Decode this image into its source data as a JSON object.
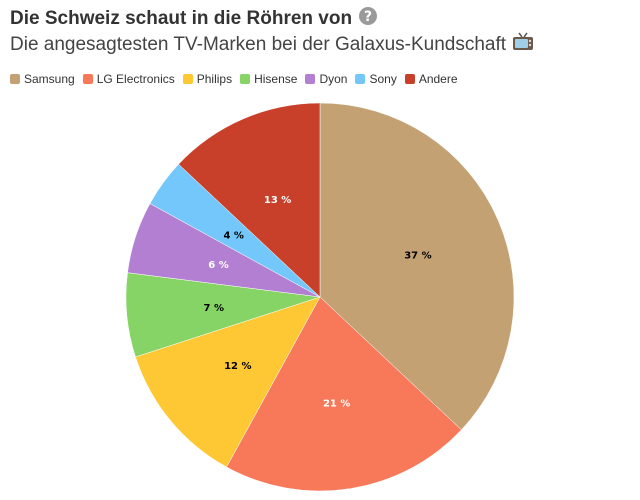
{
  "header": {
    "title": "Die Schweiz schaut in die Röhren von",
    "subtitle": "Die angesagtesten TV-Marken bei der Galaxus-Kundschaft"
  },
  "icons": {
    "title_icon": "question-mark-icon",
    "subtitle_icon": "television-icon"
  },
  "chart_data": {
    "type": "pie",
    "title": "Die Schweiz schaut in die Röhren von",
    "subtitle": "Die angesagtesten TV-Marken bei der Galaxus-Kundschaft",
    "legend_position": "top-left",
    "unit": "%",
    "slices": [
      {
        "label": "Samsung",
        "value": 37,
        "display": "37 %",
        "color": "#c4a173",
        "label_color": "#000000"
      },
      {
        "label": "LG Electronics",
        "value": 21,
        "display": "21 %",
        "color": "#f7795a",
        "label_color": "#ffffff"
      },
      {
        "label": "Philips",
        "value": 12,
        "display": "12 %",
        "color": "#fec835",
        "label_color": "#000000"
      },
      {
        "label": "Hisense",
        "value": 7,
        "display": "7 %",
        "color": "#86d466",
        "label_color": "#000000"
      },
      {
        "label": "Dyon",
        "value": 6,
        "display": "6 %",
        "color": "#b27fd3",
        "label_color": "#ffffff"
      },
      {
        "label": "Sony",
        "value": 4,
        "display": "4 %",
        "color": "#74c7fb",
        "label_color": "#000000"
      },
      {
        "label": "Andere",
        "value": 13,
        "display": "13 %",
        "color": "#c9402a",
        "label_color": "#ffffff"
      }
    ]
  }
}
